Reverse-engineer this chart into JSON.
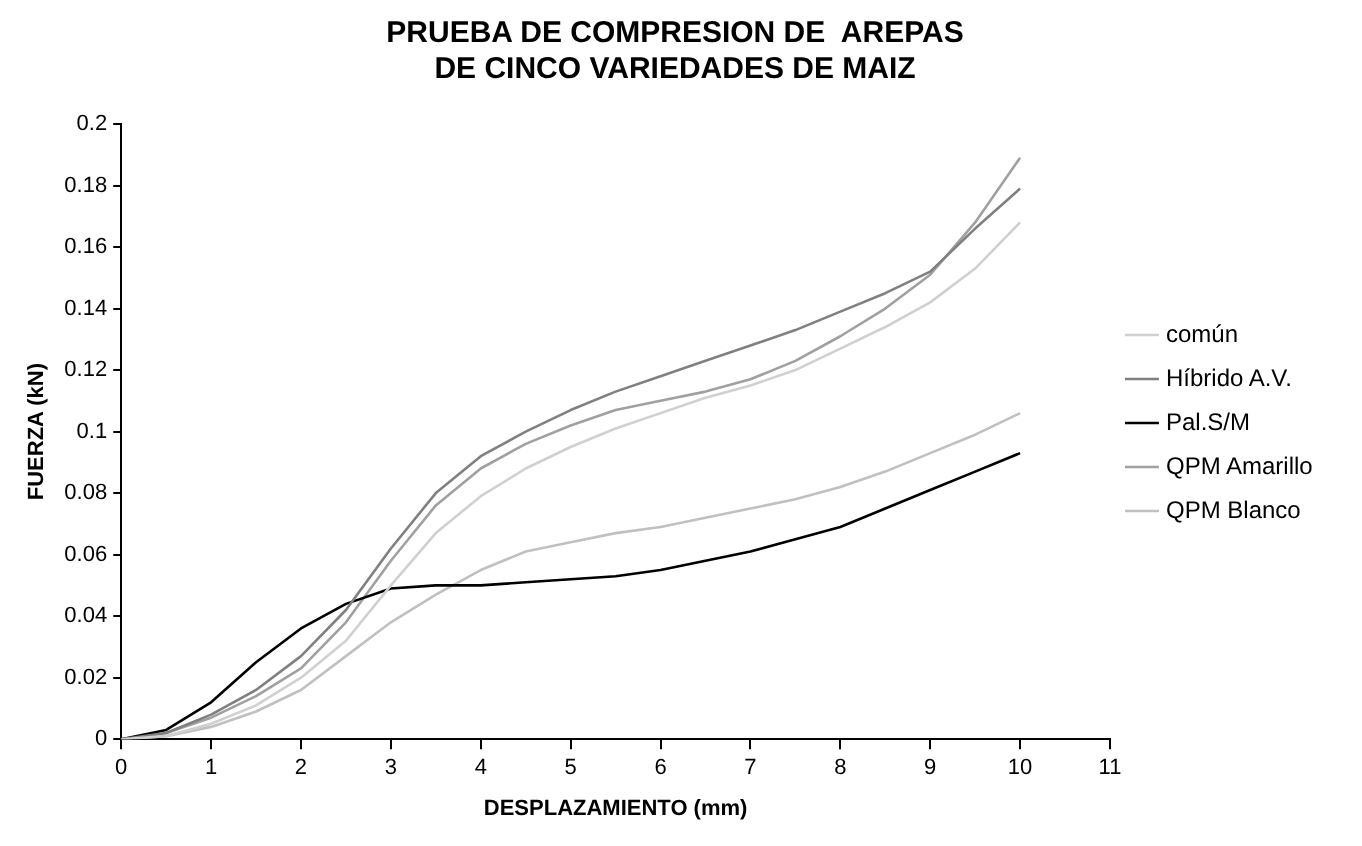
{
  "chart_data": {
    "type": "line",
    "title": [
      "PRUEBA DE COMPRESION DE  AREPAS",
      "DE CINCO VARIEDADES DE MAIZ"
    ],
    "xlabel": "DESPLAZAMIENTO (mm)",
    "ylabel": "FUERZA (kN)",
    "x": [
      0,
      0.5,
      1,
      1.5,
      2,
      2.5,
      3,
      3.5,
      4,
      4.5,
      5,
      5.5,
      6,
      6.5,
      7,
      7.5,
      8,
      8.5,
      9,
      9.5,
      10
    ],
    "series": [
      {
        "name": "común",
        "color": "#d0d0d0",
        "values": [
          0,
          0.001,
          0.005,
          0.011,
          0.02,
          0.032,
          0.05,
          0.067,
          0.079,
          0.088,
          0.095,
          0.101,
          0.106,
          0.111,
          0.115,
          0.12,
          0.127,
          0.134,
          0.142,
          0.153,
          0.168
        ]
      },
      {
        "name": "Híbrido A.V.",
        "color": "#808080",
        "values": [
          0,
          0.002,
          0.008,
          0.016,
          0.027,
          0.042,
          0.062,
          0.08,
          0.092,
          0.1,
          0.107,
          0.113,
          0.118,
          0.123,
          0.128,
          0.133,
          0.139,
          0.145,
          0.152,
          0.166,
          0.179
        ]
      },
      {
        "name": "Pal.S/M",
        "color": "#000000",
        "values": [
          0,
          0.003,
          0.012,
          0.025,
          0.036,
          0.044,
          0.049,
          0.05,
          0.05,
          0.051,
          0.052,
          0.053,
          0.055,
          0.058,
          0.061,
          0.065,
          0.069,
          0.075,
          0.081,
          0.087,
          0.093
        ]
      },
      {
        "name": "QPM Amarillo",
        "color": "#a0a0a0",
        "values": [
          0,
          0.002,
          0.007,
          0.014,
          0.023,
          0.038,
          0.058,
          0.076,
          0.088,
          0.096,
          0.102,
          0.107,
          0.11,
          0.113,
          0.117,
          0.123,
          0.131,
          0.14,
          0.151,
          0.168,
          0.189
        ]
      },
      {
        "name": "QPM Blanco",
        "color": "#c0c0c0",
        "values": [
          0,
          0.001,
          0.004,
          0.009,
          0.016,
          0.027,
          0.038,
          0.047,
          0.055,
          0.061,
          0.064,
          0.067,
          0.069,
          0.072,
          0.075,
          0.078,
          0.082,
          0.087,
          0.093,
          0.099,
          0.106
        ]
      }
    ],
    "xlim": [
      0,
      11
    ],
    "xticks": [
      0,
      1,
      2,
      3,
      4,
      5,
      6,
      7,
      8,
      9,
      10,
      11
    ],
    "ylim": [
      0,
      0.2
    ],
    "yticks": [
      0,
      0.02,
      0.04,
      0.06,
      0.08,
      0.1,
      0.12,
      0.14,
      0.16,
      0.18,
      0.2
    ],
    "grid": false,
    "legend": "right",
    "marker": "none",
    "line_style": "solid"
  }
}
